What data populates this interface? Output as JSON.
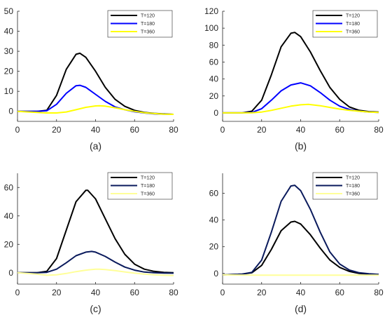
{
  "chart_data": [
    {
      "type": "line",
      "caption": "(a)",
      "xlim": [
        0,
        80
      ],
      "ylim": [
        -5,
        50
      ],
      "xticks": [
        0,
        20,
        40,
        60,
        80
      ],
      "yticks": [
        0,
        10,
        20,
        30,
        40,
        50
      ],
      "legend_position": "top-right",
      "series": [
        {
          "name": "T=120",
          "color": "#000000",
          "x": [
            0,
            10,
            15,
            20,
            25,
            30,
            32,
            35,
            40,
            45,
            50,
            55,
            60,
            65,
            70,
            75,
            80
          ],
          "y": [
            0,
            0,
            0.5,
            8,
            21,
            28.5,
            29,
            27,
            20,
            12,
            6,
            2.5,
            0.5,
            -0.5,
            -1,
            -1.3,
            -1.5
          ]
        },
        {
          "name": "T=180",
          "color": "#0000ff",
          "x": [
            0,
            10,
            15,
            20,
            25,
            30,
            32,
            35,
            40,
            45,
            50,
            55,
            60,
            65,
            70,
            75,
            80
          ],
          "y": [
            0,
            0,
            0.3,
            3.5,
            9,
            12.8,
            13,
            12,
            8.5,
            5,
            2.2,
            0.8,
            -0.2,
            -0.8,
            -1.2,
            -1.4,
            -1.5
          ]
        },
        {
          "name": "T=360",
          "color": "#ffff00",
          "x": [
            0,
            10,
            15,
            20,
            25,
            30,
            35,
            40,
            42,
            45,
            50,
            55,
            60,
            65,
            70,
            75,
            80
          ],
          "y": [
            0,
            -0.5,
            -0.8,
            -0.8,
            -0.3,
            0.8,
            2,
            2.7,
            2.8,
            2.6,
            1.8,
            0.8,
            0,
            -0.7,
            -1.1,
            -1.4,
            -1.5
          ]
        }
      ]
    },
    {
      "type": "line",
      "caption": "(b)",
      "xlim": [
        0,
        80
      ],
      "ylim": [
        -10,
        120
      ],
      "xticks": [
        0,
        20,
        40,
        60,
        80
      ],
      "yticks": [
        0,
        20,
        40,
        60,
        80,
        100,
        120
      ],
      "legend_position": "top-right",
      "series": [
        {
          "name": "T=120",
          "color": "#000000",
          "x": [
            0,
            10,
            15,
            20,
            25,
            30,
            35,
            37,
            40,
            45,
            50,
            55,
            60,
            65,
            70,
            75,
            80
          ],
          "y": [
            0,
            0,
            2,
            15,
            45,
            78,
            94,
            95,
            90,
            72,
            50,
            30,
            16,
            7,
            3,
            1.5,
            1
          ]
        },
        {
          "name": "T=180",
          "color": "#0000ff",
          "x": [
            0,
            10,
            15,
            20,
            25,
            30,
            35,
            40,
            45,
            50,
            55,
            60,
            65,
            70,
            75,
            80
          ],
          "y": [
            0,
            0,
            0.5,
            5,
            15,
            26,
            33,
            35.5,
            32,
            24,
            15,
            8,
            4,
            2,
            1,
            0.5
          ]
        },
        {
          "name": "T=360",
          "color": "#ffff00",
          "x": [
            0,
            10,
            15,
            20,
            25,
            30,
            35,
            40,
            44,
            50,
            55,
            60,
            65,
            70,
            75,
            80
          ],
          "y": [
            0,
            0,
            0.2,
            1,
            3,
            5.5,
            8,
            9.5,
            10,
            8.5,
            6.5,
            4.5,
            3,
            2,
            1,
            0.5
          ]
        }
      ]
    },
    {
      "type": "line",
      "caption": "(c)",
      "xlim": [
        0,
        80
      ],
      "ylim": [
        -8,
        70
      ],
      "xticks": [
        0,
        20,
        40,
        60,
        80
      ],
      "yticks": [
        0,
        20,
        40,
        60
      ],
      "legend_position": "top-right",
      "series": [
        {
          "name": "T=120",
          "color": "#000000",
          "x": [
            0,
            10,
            15,
            20,
            25,
            30,
            35,
            36,
            40,
            45,
            50,
            55,
            60,
            65,
            70,
            75,
            80
          ],
          "y": [
            0,
            0,
            1,
            10,
            30,
            50,
            58,
            58,
            52,
            38,
            24,
            13,
            6,
            2.5,
            1,
            0.3,
            0
          ]
        },
        {
          "name": "T=180",
          "color": "#0a1a5c",
          "x": [
            0,
            10,
            15,
            20,
            25,
            30,
            35,
            38,
            40,
            45,
            50,
            55,
            60,
            65,
            70,
            75,
            80
          ],
          "y": [
            0,
            0,
            0.3,
            2.5,
            7,
            12,
            14.5,
            15,
            14.5,
            11.5,
            7.5,
            4,
            1.8,
            0.5,
            0,
            -0.2,
            -0.3
          ]
        },
        {
          "name": "T=360",
          "color": "#ffff99",
          "x": [
            0,
            10,
            15,
            20,
            25,
            30,
            35,
            40,
            42,
            45,
            50,
            55,
            60,
            65,
            70,
            75,
            80
          ],
          "y": [
            0,
            -1,
            -1.8,
            -1.5,
            -0.5,
            0.8,
            1.8,
            2.5,
            2.5,
            2.2,
            1.5,
            0.6,
            -0.3,
            -1,
            -1.5,
            -1.8,
            -2
          ]
        }
      ]
    },
    {
      "type": "line",
      "caption": "(d)",
      "xlim": [
        0,
        80
      ],
      "ylim": [
        -8,
        75
      ],
      "xticks": [
        0,
        20,
        40,
        60,
        80
      ],
      "yticks": [
        0,
        20,
        40,
        60
      ],
      "legend_position": "top-right",
      "series": [
        {
          "name": "T=120",
          "color": "#000000",
          "x": [
            0,
            10,
            15,
            20,
            25,
            30,
            35,
            37,
            40,
            45,
            50,
            55,
            60,
            65,
            70,
            75,
            80
          ],
          "y": [
            -1,
            -0.5,
            0.5,
            6,
            18,
            32,
            38.5,
            39,
            37,
            29,
            19,
            10,
            4.5,
            1.5,
            0,
            -0.5,
            -0.7
          ]
        },
        {
          "name": "T=180",
          "color": "#0a1a5c",
          "x": [
            0,
            10,
            15,
            20,
            25,
            30,
            35,
            37,
            40,
            45,
            50,
            55,
            60,
            65,
            70,
            75,
            80
          ],
          "y": [
            -1,
            -0.5,
            0.8,
            10,
            31,
            54,
            65.5,
            66,
            62,
            48,
            31,
            16,
            7,
            2.5,
            0.5,
            -0.3,
            -0.7
          ]
        },
        {
          "name": "T=360",
          "color": "#ffff99",
          "x": [
            0,
            10,
            20,
            30,
            40,
            50,
            60,
            70,
            80
          ],
          "y": [
            -1,
            -1.2,
            -1.3,
            -1.3,
            -1.3,
            -1.3,
            -1.3,
            -1.3,
            -1.3
          ]
        }
      ]
    }
  ]
}
